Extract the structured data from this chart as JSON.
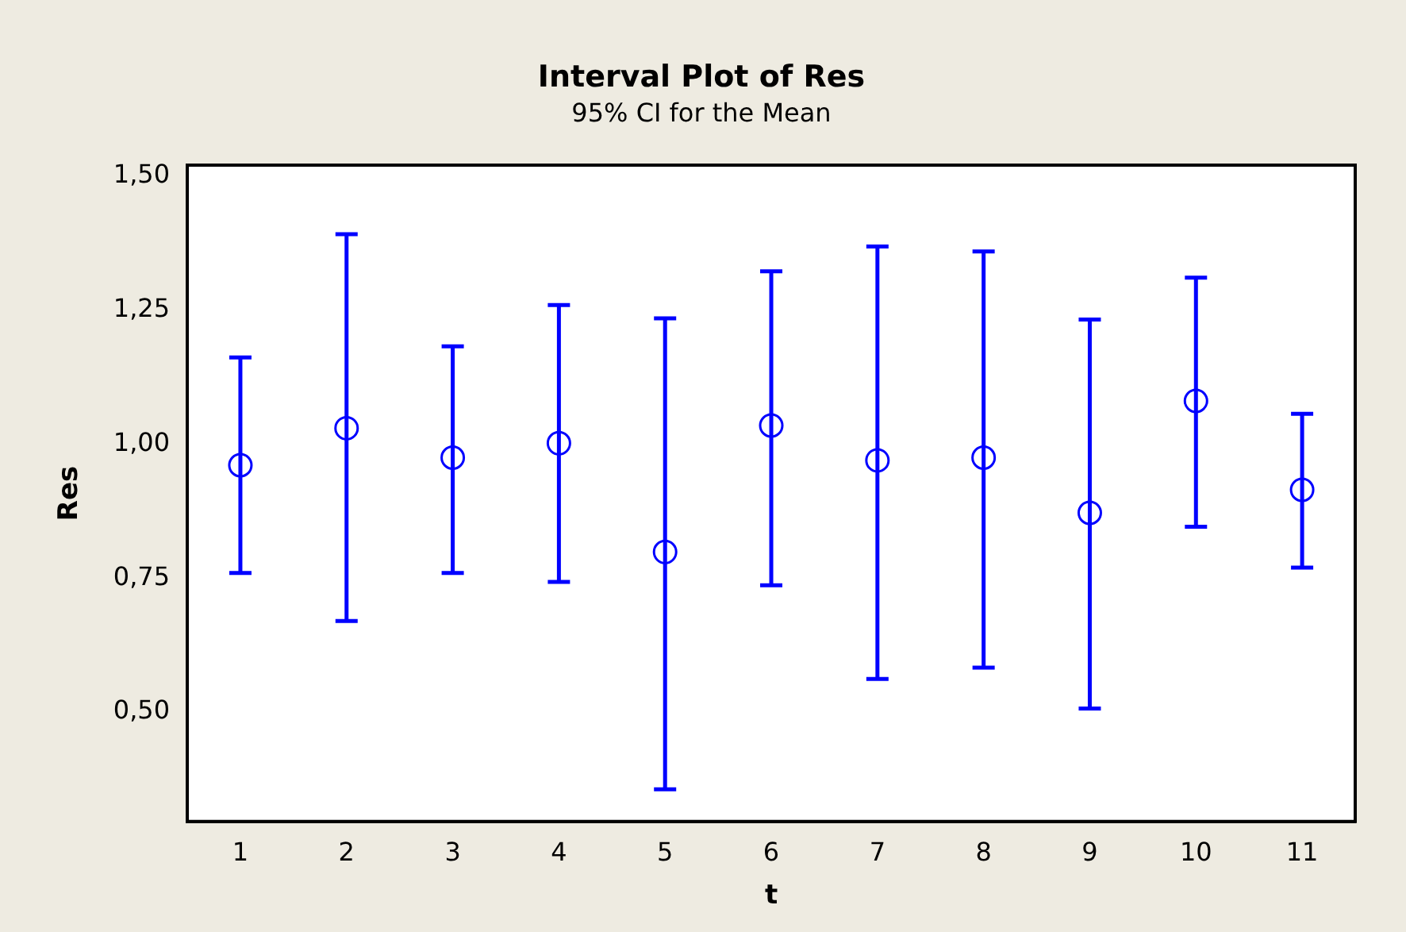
{
  "chart_data": {
    "type": "scatter",
    "title": "Interval Plot of Res",
    "subtitle": "95% CI for the Mean",
    "xlabel": "t",
    "ylabel": "Res",
    "categories": [
      "1",
      "2",
      "3",
      "4",
      "5",
      "6",
      "7",
      "8",
      "9",
      "10",
      "11"
    ],
    "values": [
      0.961,
      1.03,
      0.975,
      1.002,
      0.799,
      1.035,
      0.97,
      0.975,
      0.872,
      1.081,
      0.915
    ],
    "errors": [
      [
        0.76,
        1.162
      ],
      [
        0.67,
        1.392
      ],
      [
        0.76,
        1.183
      ],
      [
        0.743,
        1.26
      ],
      [
        0.356,
        1.235
      ],
      [
        0.737,
        1.323
      ],
      [
        0.562,
        1.369
      ],
      [
        0.583,
        1.36
      ],
      [
        0.507,
        1.233
      ],
      [
        0.846,
        1.311
      ],
      [
        0.77,
        1.057
      ]
    ],
    "color": "#0000ff",
    "marker": "circle",
    "grid": false,
    "legend": false,
    "ylim": [
      0.296,
      1.521
    ],
    "yticks": [
      {
        "value": 0.5,
        "label": "0,50"
      },
      {
        "value": 0.75,
        "label": "0,75"
      },
      {
        "value": 1,
        "label": "1,00"
      },
      {
        "value": 1.25,
        "label": "1,25"
      },
      {
        "value": 1.5,
        "label": "1,50"
      }
    ]
  }
}
